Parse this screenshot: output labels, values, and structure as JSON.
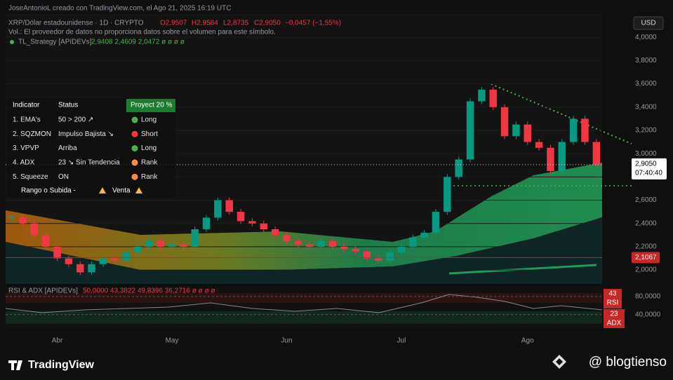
{
  "header": {
    "author_line": "JoseAntonioL creado con TradingView.com, el Ago 21, 2025 16:19 UTC",
    "symbol": "XRP/Dólar estadounidense · 1D · CRYPTO",
    "open": "O2,9507",
    "high": "H2,9584",
    "low": "L2,8735",
    "close": "C2,9050",
    "change": "−0,0457 (−1,55%)",
    "volume_note": "Vol.: El proveedor de datos no proporciona datos sobre el volumen para este símbolo.",
    "indicator": "TL_Strategy [APIDEVs]",
    "indicator_values": "2,9408  2,4609  2,0472  ø  ø  ø  ø"
  },
  "chart_data": {
    "type": "candlestick",
    "categories": [
      null,
      null,
      null,
      null,
      "Abr",
      null,
      null,
      null,
      null,
      null,
      null,
      null,
      null,
      null,
      "May",
      null,
      null,
      null,
      null,
      null,
      null,
      null,
      null,
      null,
      "Jun",
      null,
      null,
      null,
      null,
      null,
      null,
      null,
      null,
      null,
      "Jul",
      null,
      null,
      null,
      null,
      null,
      null,
      null,
      null,
      null,
      null,
      "Ago",
      null,
      null,
      null,
      null,
      null,
      null
    ],
    "close": [
      2.45,
      2.4,
      2.3,
      2.2,
      2.1,
      2.05,
      1.98,
      2.05,
      2.1,
      2.08,
      2.15,
      2.2,
      2.25,
      2.2,
      2.22,
      2.2,
      2.35,
      2.45,
      2.6,
      2.5,
      2.42,
      2.4,
      2.35,
      2.3,
      2.25,
      2.22,
      2.2,
      2.25,
      2.2,
      2.18,
      2.16,
      2.1,
      2.08,
      2.15,
      2.2,
      2.28,
      2.32,
      2.5,
      2.8,
      2.95,
      3.45,
      3.55,
      3.4,
      3.15,
      3.25,
      3.1,
      3.05,
      2.85,
      3.1,
      3.3,
      3.1,
      2.905
    ],
    "up_color": "#089981",
    "down_color": "#f23645",
    "ylim": [
      1.88,
      4.2
    ],
    "yticks": [
      {
        "value": 2.0,
        "label": "2,0000"
      },
      {
        "value": 2.2,
        "label": "2,2000"
      },
      {
        "value": 2.4,
        "label": "2,4000"
      },
      {
        "value": 2.6,
        "label": "2,6000"
      },
      {
        "value": 2.8,
        "label": "2,8000"
      },
      {
        "value": 3.0,
        "label": "3,0000"
      },
      {
        "value": 3.2,
        "label": "3,2000"
      },
      {
        "value": 3.4,
        "label": "3,4000"
      },
      {
        "value": 3.6,
        "label": "3,6000"
      },
      {
        "value": 3.8,
        "label": "3,8000"
      },
      {
        "value": 4.0,
        "label": "4,0000"
      }
    ],
    "currency": "USD",
    "last_price": {
      "value": 2.905,
      "label": "2,9050"
    },
    "countdown": "07:40:40",
    "level": {
      "value": 2.1067,
      "label": "2,1067"
    }
  },
  "table": {
    "header": [
      "Indicator",
      "Status",
      "Proyect 20 %"
    ],
    "rows": [
      [
        "1. EMA's",
        "50 > 200 ↗",
        "Long"
      ],
      [
        "2. SQZMON",
        "Impulso Bajista ↘",
        "Short"
      ],
      [
        "3. VPVP",
        "Arriba",
        "Long"
      ],
      [
        "4. ADX",
        "23 ↘ Sin Tendencia",
        "Rank"
      ],
      [
        "5. Squeeze",
        "ON",
        "Rank"
      ]
    ],
    "dot_colors": [
      "#4caf50",
      "#f23645",
      "#4caf50",
      "#ff8a50",
      "#ff8a50"
    ],
    "footer": [
      "Rango o Subida -",
      "Venta"
    ]
  },
  "rsi_pane": {
    "title": "RSI & ADX [APIDEVs]",
    "values_text": "50,0000  43,3822  49,8396  36,2716  ø  ø  ø  ø",
    "ylim": [
      10,
      100
    ],
    "yticks": [
      {
        "value": 80,
        "label": "80,0000"
      },
      {
        "value": 40,
        "label": "40,0000"
      }
    ],
    "rsi_value": "43",
    "rsi_name": "RSI",
    "adx_value": "23",
    "adx_name": "ADX"
  },
  "footer": {
    "brand": "TradingView",
    "credit": "@ blogtienso"
  }
}
